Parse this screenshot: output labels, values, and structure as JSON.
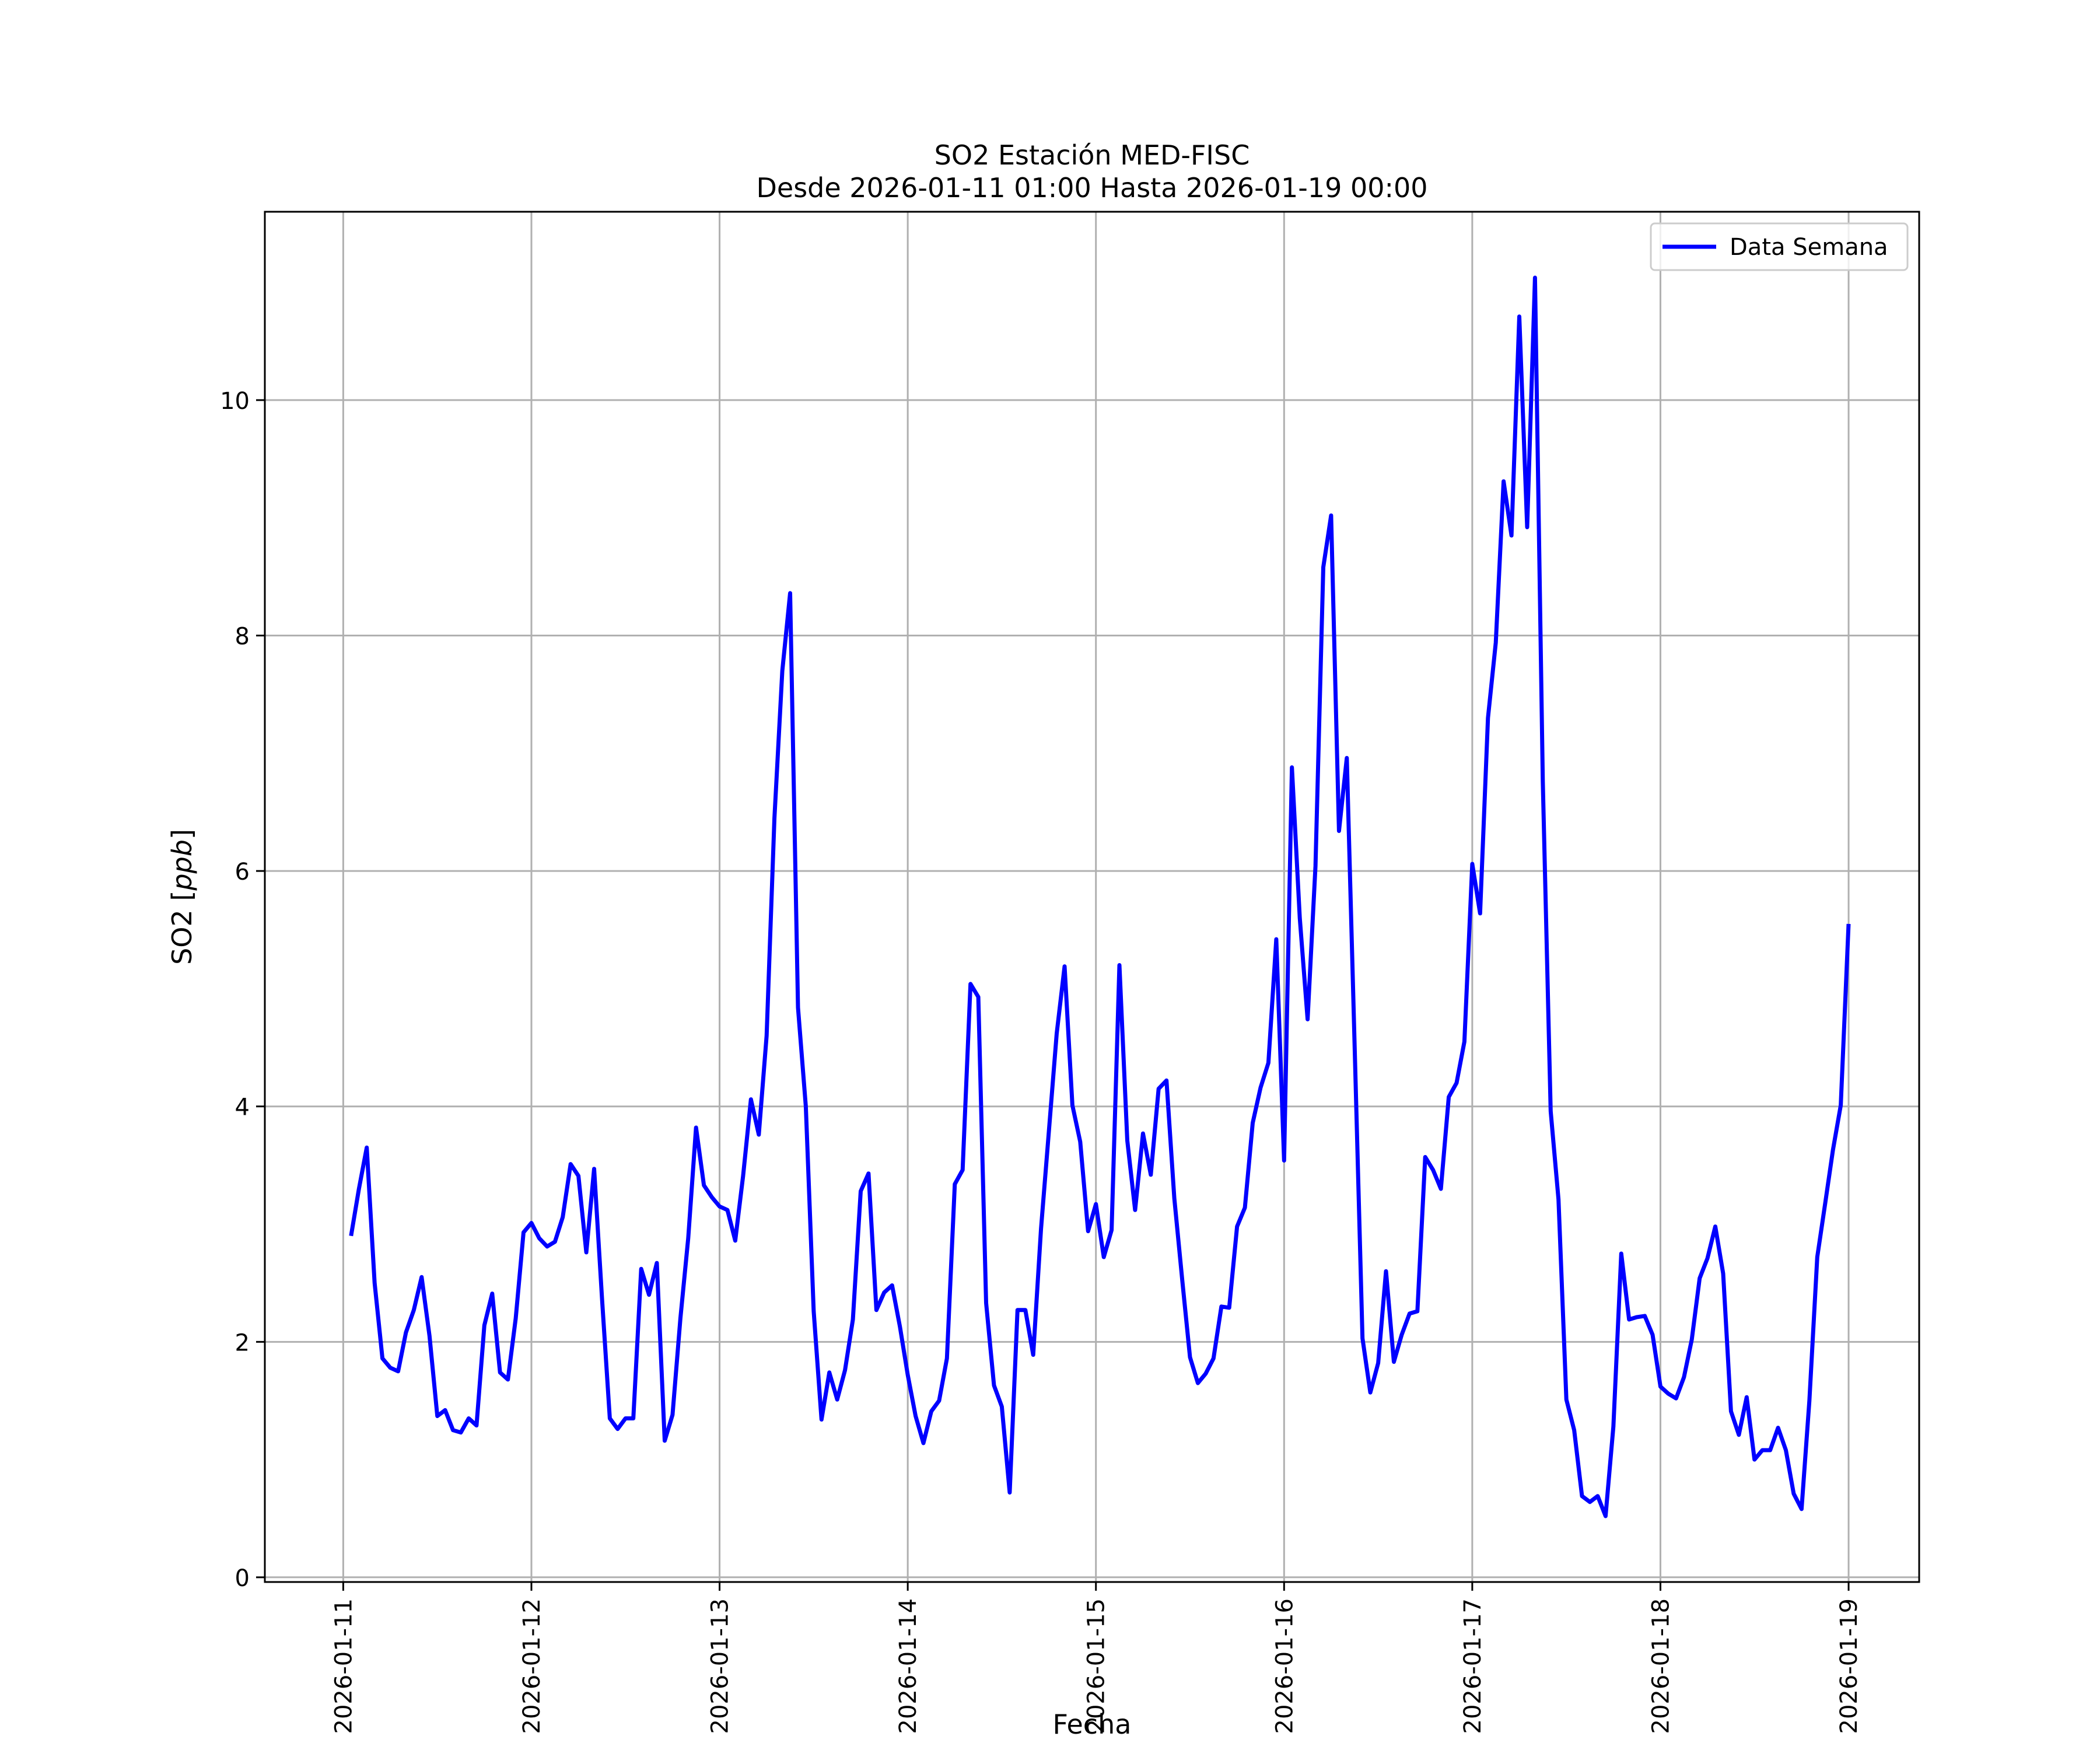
{
  "chart_data": {
    "type": "line",
    "title_line1": "SO2 Estación MED-FISC",
    "title_line2": "Desde 2026-01-11 01:00 Hasta 2026-01-19 00:00",
    "xlabel": "Fecha",
    "ylabel_prefix": "SO2 [",
    "ylabel_unit": "ppb",
    "ylabel_suffix": "]",
    "ylim": [
      -0.04,
      11.6
    ],
    "yticks": [
      0,
      2,
      4,
      6,
      8,
      10
    ],
    "xlim": [
      "2026-01-10 14:00",
      "2026-01-19 09:00"
    ],
    "xticks": [
      "2026-01-11",
      "2026-01-12",
      "2026-01-13",
      "2026-01-14",
      "2026-01-15",
      "2026-01-16",
      "2026-01-17",
      "2026-01-18",
      "2026-01-19"
    ],
    "grid": true,
    "legend_position": "top-right",
    "series": [
      {
        "name": "Data Semana",
        "color": "#0000ff",
        "x_start": "2026-01-11 01:00",
        "x_step_hours": 1,
        "values": [
          2.9,
          3.3,
          3.65,
          2.5,
          1.86,
          1.78,
          1.75,
          2.08,
          2.27,
          2.55,
          2.05,
          1.37,
          1.42,
          1.25,
          1.23,
          1.35,
          1.29,
          2.14,
          2.41,
          1.74,
          1.68,
          2.2,
          2.93,
          3.01,
          2.88,
          2.81,
          2.85,
          3.06,
          3.51,
          3.41,
          2.76,
          3.47,
          2.37,
          1.35,
          1.26,
          1.35,
          1.35,
          2.62,
          2.4,
          2.67,
          1.16,
          1.38,
          2.2,
          2.88,
          3.82,
          3.33,
          3.23,
          3.15,
          3.12,
          2.86,
          3.41,
          4.06,
          3.76,
          4.6,
          6.45,
          7.7,
          8.36,
          4.84,
          4.0,
          2.26,
          1.34,
          1.74,
          1.51,
          1.76,
          2.19,
          3.28,
          3.43,
          2.27,
          2.42,
          2.48,
          2.13,
          1.72,
          1.37,
          1.14,
          1.41,
          1.5,
          1.86,
          3.34,
          3.46,
          5.04,
          4.93,
          2.33,
          1.63,
          1.45,
          0.72,
          2.27,
          2.27,
          1.89,
          2.96,
          3.79,
          4.62,
          5.19,
          4.01,
          3.7,
          2.94,
          3.17,
          2.72,
          2.95,
          5.2,
          3.71,
          3.12,
          3.77,
          3.42,
          4.15,
          4.22,
          3.22,
          2.53,
          1.87,
          1.65,
          1.73,
          1.86,
          2.3,
          2.29,
          2.98,
          3.14,
          3.86,
          4.16,
          4.37,
          5.42,
          3.54,
          6.88,
          5.6,
          4.74,
          6.04,
          8.58,
          9.02,
          6.34,
          6.96,
          4.5,
          2.03,
          1.57,
          1.82,
          2.6,
          1.83,
          2.06,
          2.24,
          2.26,
          3.57,
          3.46,
          3.3,
          4.08,
          4.2,
          4.55,
          6.06,
          5.64,
          7.3,
          7.94,
          9.31,
          8.85,
          10.71,
          8.92,
          11.04,
          6.76,
          3.96,
          3.21,
          1.51,
          1.25,
          0.69,
          0.64,
          0.69,
          0.52,
          1.28,
          2.75,
          2.19,
          2.21,
          2.22,
          2.06,
          1.62,
          1.56,
          1.52,
          1.7,
          2.02,
          2.54,
          2.71,
          2.98,
          2.58,
          1.41,
          1.21,
          1.53,
          1.0,
          1.08,
          1.08,
          1.27,
          1.08,
          0.71,
          0.58,
          1.5,
          2.72,
          3.17,
          3.63,
          4.01,
          5.55
        ]
      }
    ]
  }
}
